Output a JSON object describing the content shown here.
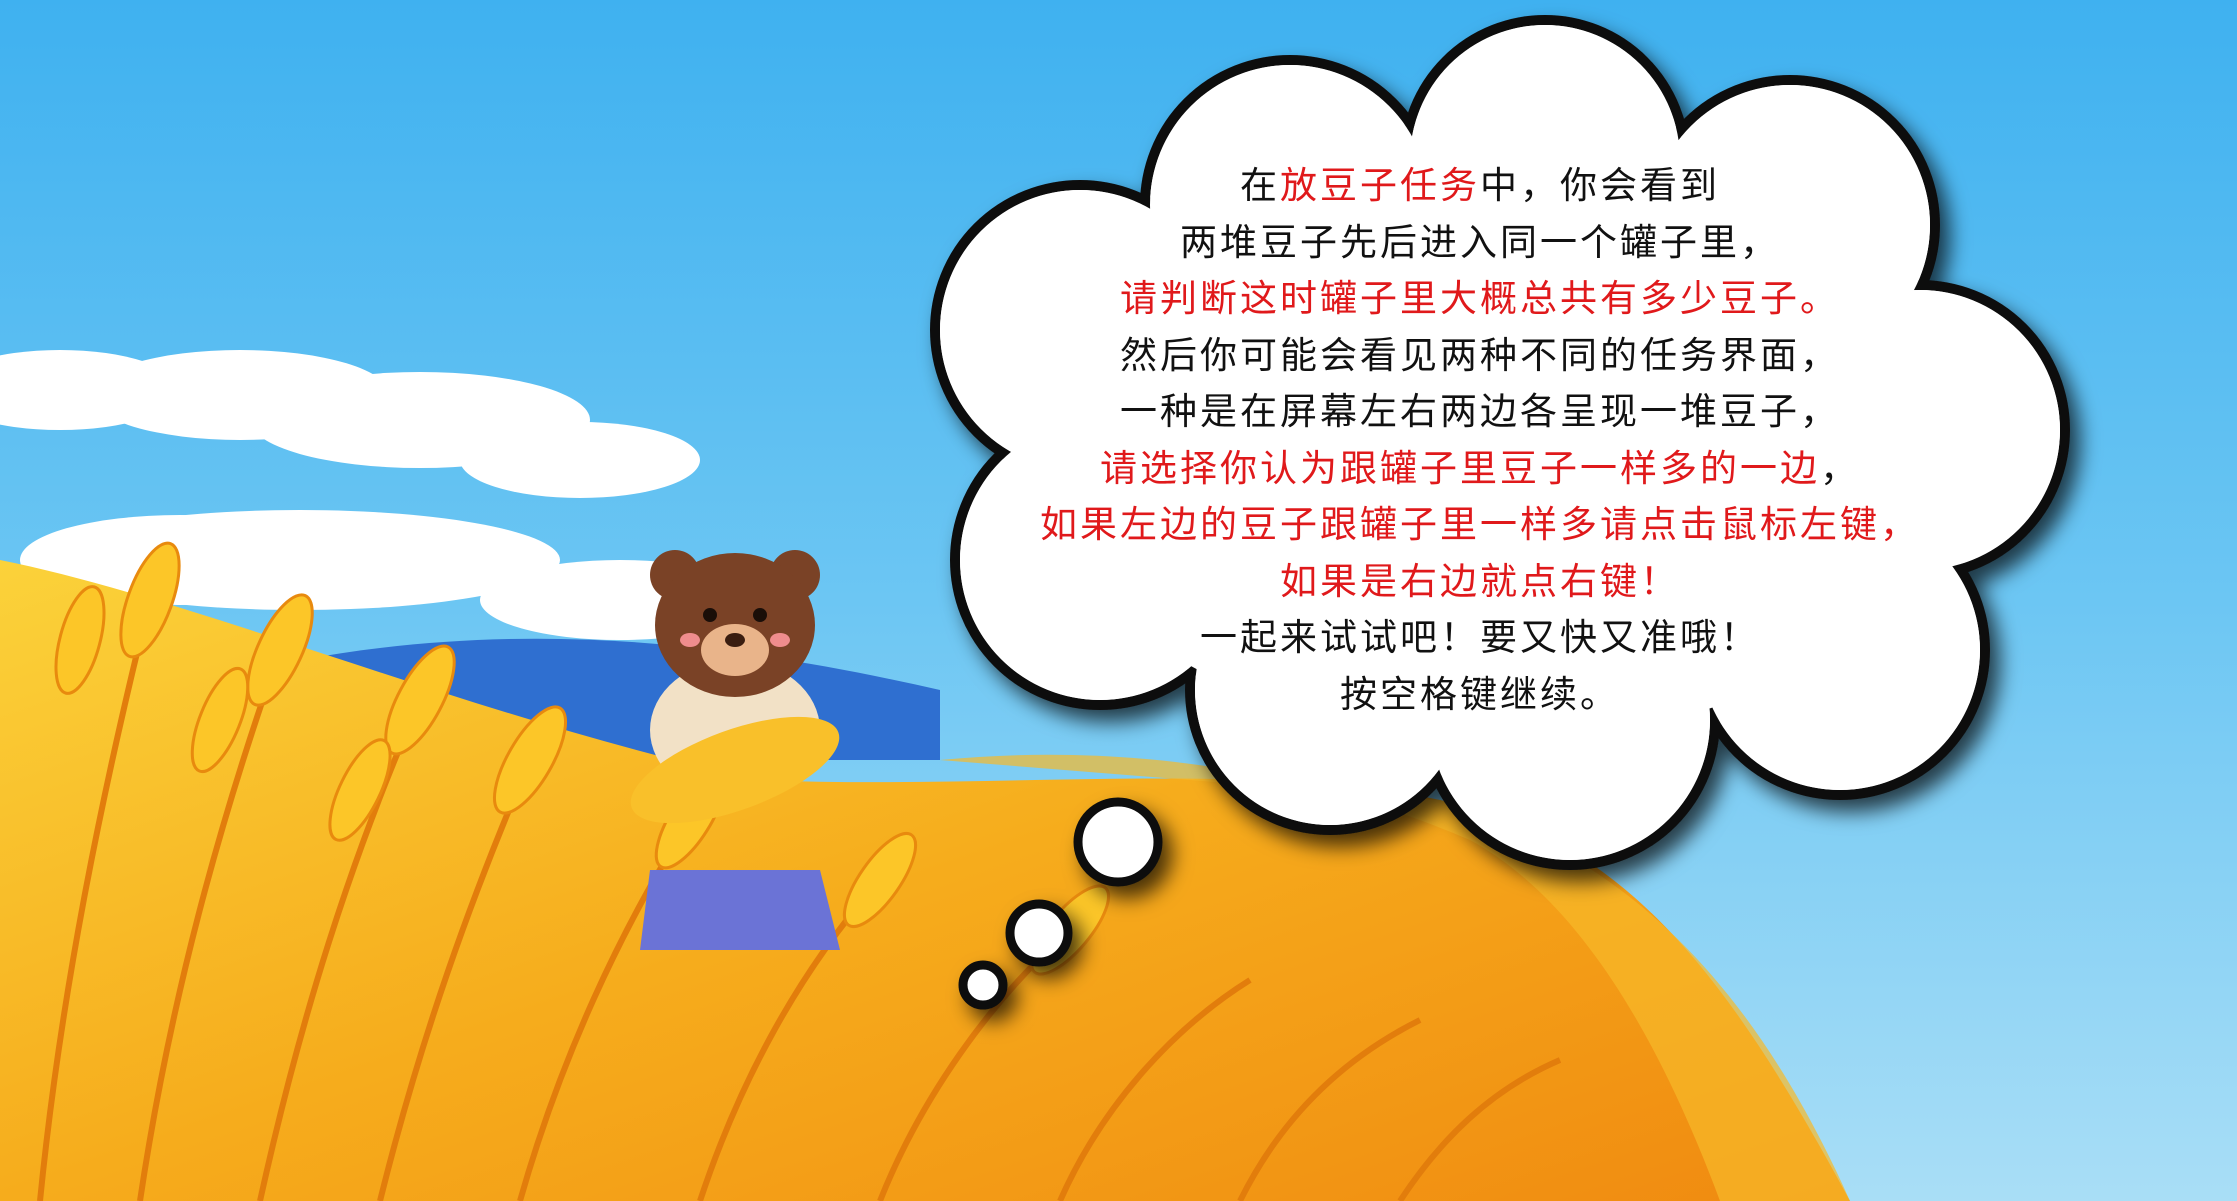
{
  "colors": {
    "sky": "#41b2ef",
    "wheat": "#f5b31b",
    "highlight": "#e0191b",
    "text": "#111111",
    "bear_fur": "#7a4226"
  },
  "instructions": {
    "line1": {
      "pre": "在",
      "highlight": "放豆子任务",
      "post": "中，你会看到"
    },
    "line2": "两堆豆子先后进入同一个罐子里，",
    "line3": "请判断这时罐子里大概总共有多少豆子。",
    "line4": "然后你可能会看见两种不同的任务界面，",
    "line5": "一种是在屏幕左右两边各呈现一堆豆子，",
    "line6": {
      "highlight": "请选择你认为跟罐子里豆子一样多的一边",
      "post": "，"
    },
    "line7": "如果左边的豆子跟罐子里一样多请点击鼠标左键，",
    "line8": "如果是右边就点右键！",
    "line9": "一起来试试吧！要又快又准哦！",
    "line10": "按空格键继续。"
  }
}
